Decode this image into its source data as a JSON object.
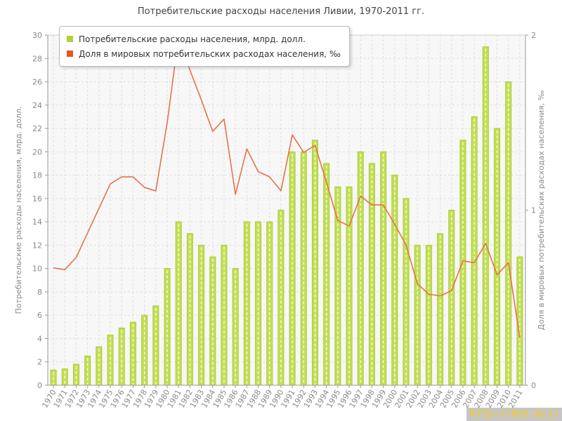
{
  "title": "Потребительские расходы населения Ливии, 1970-2011 гг.",
  "legend": [
    {
      "label": "Потребительские расходы населения, млрд. долл.",
      "color": "#aed336"
    },
    {
      "label": "Доля в мировых потребительских расходах населения, ‰",
      "color": "#e4571e"
    }
  ],
  "watermark": "http://be5.biz/",
  "colors": {
    "bar_fill": "#c3df55",
    "bar_edge": "#a8cc35",
    "line": "#e57248",
    "grid": "#dedede",
    "axis": "#999999",
    "frame": "#cccccc",
    "plot_bg": "#f7f7f7",
    "tick_text": "#8a8a8a"
  },
  "chart_data": {
    "type": "bar",
    "title": "Потребительские расходы населения Ливии, 1970-2011 гг.",
    "categories": [
      1970,
      1971,
      1972,
      1973,
      1974,
      1975,
      1976,
      1977,
      1978,
      1979,
      1980,
      1981,
      1982,
      1983,
      1984,
      1985,
      1986,
      1987,
      1988,
      1989,
      1990,
      1991,
      1992,
      1993,
      1994,
      1995,
      1996,
      1997,
      1998,
      1999,
      2000,
      2001,
      2002,
      2003,
      2004,
      2005,
      2006,
      2007,
      2008,
      2009,
      2010,
      2011
    ],
    "series": [
      {
        "name": "Потребительские расходы населения, млрд. долл.",
        "type": "bar",
        "axis": "left",
        "values": [
          1.3,
          1.4,
          1.8,
          2.5,
          3.3,
          4.3,
          4.9,
          5.4,
          6.0,
          6.8,
          10,
          14,
          13,
          12,
          11,
          12,
          10,
          14,
          14,
          14,
          15,
          20,
          20,
          21,
          19,
          17,
          17,
          20,
          19,
          20,
          18,
          16,
          12,
          12,
          13,
          15,
          21,
          23,
          29,
          22,
          26,
          11
        ]
      },
      {
        "name": "Доля в мировых потребительских расходах населения, ‰",
        "type": "line",
        "axis": "right",
        "values": [
          0.67,
          0.66,
          0.73,
          0.87,
          1.01,
          1.15,
          1.19,
          1.19,
          1.13,
          1.11,
          1.5,
          1.99,
          1.8,
          1.63,
          1.45,
          1.52,
          1.09,
          1.35,
          1.22,
          1.19,
          1.11,
          1.43,
          1.33,
          1.37,
          1.16,
          0.94,
          0.91,
          1.08,
          1.03,
          1.03,
          0.92,
          0.8,
          0.58,
          0.52,
          0.51,
          0.54,
          0.71,
          0.7,
          0.81,
          0.63,
          0.7,
          0.27
        ]
      }
    ],
    "left_axis": {
      "label": "Потребительские расходы населения, млрд. долл.",
      "min": 0,
      "max": 30,
      "tick_step": 2
    },
    "right_axis": {
      "label": "Доля в мировых потребительских расходах населения, ‰",
      "min": 0,
      "max": 2,
      "tick_step": 1
    },
    "grid": true,
    "legend_position": "top-left"
  }
}
